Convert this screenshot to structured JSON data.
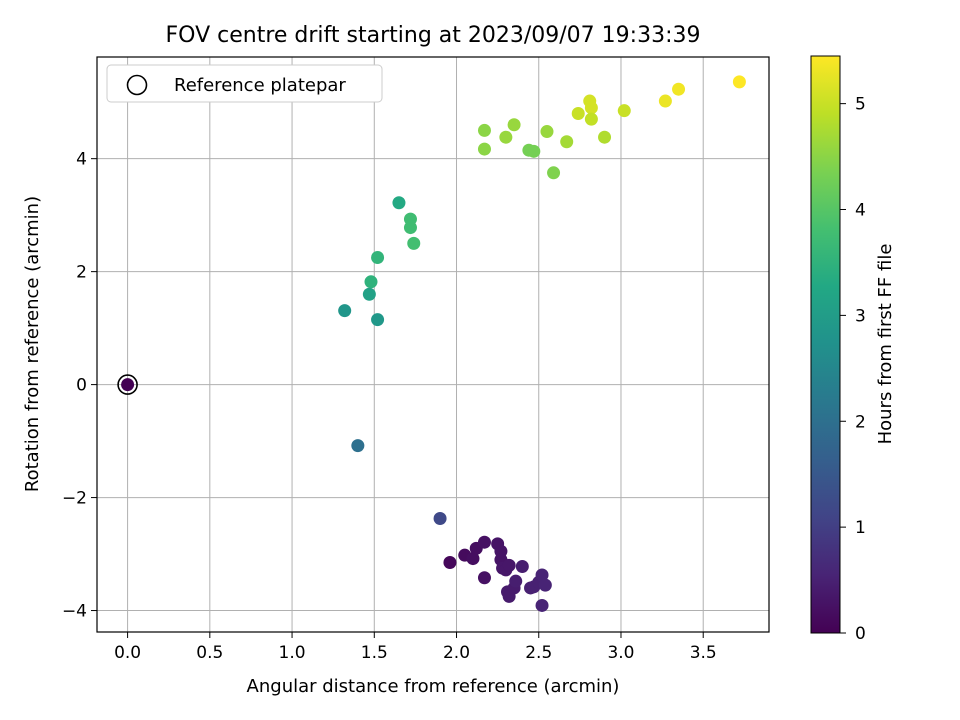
{
  "chart_data": {
    "type": "scatter",
    "title": "FOV centre drift starting at 2023/09/07 19:33:39",
    "xlabel": "Angular distance from reference (arcmin)",
    "ylabel": "Rotation from reference (arcmin)",
    "xlim": [
      -0.186,
      3.9
    ],
    "ylim": [
      -4.38,
      5.8
    ],
    "xticks": [
      0.0,
      0.5,
      1.0,
      1.5,
      2.0,
      2.5,
      3.0,
      3.5
    ],
    "xtick_labels": [
      "0.0",
      "0.5",
      "1.0",
      "1.5",
      "2.0",
      "2.5",
      "3.0",
      "3.5"
    ],
    "yticks": [
      -4,
      -2,
      0,
      2,
      4
    ],
    "ytick_labels": [
      "−4",
      "−2",
      "0",
      "2",
      "4"
    ],
    "grid": true,
    "legend": {
      "location": "top-left",
      "entries": [
        "Reference platepar"
      ]
    },
    "colorbar": {
      "label": "Hours from first FF file",
      "range": [
        0,
        5.45
      ],
      "ticks": [
        0,
        1,
        2,
        3,
        4,
        5
      ],
      "tick_labels": [
        "0",
        "1",
        "2",
        "3",
        "4",
        "5"
      ],
      "colormap": "viridis"
    },
    "reference_point": {
      "x": 0,
      "y": 0
    },
    "points": [
      {
        "x": 0.0,
        "y": 0.0,
        "c": 0.0
      },
      {
        "x": 1.96,
        "y": -3.15,
        "c": 0.1
      },
      {
        "x": 2.05,
        "y": -3.02,
        "c": 0.15
      },
      {
        "x": 2.1,
        "y": -3.08,
        "c": 0.2
      },
      {
        "x": 2.12,
        "y": -2.9,
        "c": 0.2
      },
      {
        "x": 2.17,
        "y": -2.79,
        "c": 0.25
      },
      {
        "x": 2.17,
        "y": -3.42,
        "c": 0.25
      },
      {
        "x": 2.25,
        "y": -2.82,
        "c": 0.3
      },
      {
        "x": 2.27,
        "y": -2.95,
        "c": 0.3
      },
      {
        "x": 2.27,
        "y": -3.1,
        "c": 0.3
      },
      {
        "x": 2.28,
        "y": -3.25,
        "c": 0.35
      },
      {
        "x": 2.3,
        "y": -3.28,
        "c": 0.35
      },
      {
        "x": 2.32,
        "y": -3.2,
        "c": 0.35
      },
      {
        "x": 2.31,
        "y": -3.67,
        "c": 0.4
      },
      {
        "x": 2.32,
        "y": -3.75,
        "c": 0.4
      },
      {
        "x": 2.35,
        "y": -3.6,
        "c": 0.4
      },
      {
        "x": 2.36,
        "y": -3.48,
        "c": 0.45
      },
      {
        "x": 2.4,
        "y": -3.22,
        "c": 0.45
      },
      {
        "x": 2.45,
        "y": -3.6,
        "c": 0.5
      },
      {
        "x": 2.47,
        "y": -3.58,
        "c": 0.5
      },
      {
        "x": 2.5,
        "y": -3.5,
        "c": 0.5
      },
      {
        "x": 2.52,
        "y": -3.37,
        "c": 0.55
      },
      {
        "x": 2.54,
        "y": -3.55,
        "c": 0.55
      },
      {
        "x": 2.52,
        "y": -3.91,
        "c": 0.55
      },
      {
        "x": 1.9,
        "y": -2.37,
        "c": 1.2
      },
      {
        "x": 1.4,
        "y": -1.08,
        "c": 2.0
      },
      {
        "x": 1.32,
        "y": 1.31,
        "c": 2.85
      },
      {
        "x": 1.52,
        "y": 1.15,
        "c": 2.9
      },
      {
        "x": 1.47,
        "y": 1.6,
        "c": 3.1
      },
      {
        "x": 1.48,
        "y": 1.82,
        "c": 3.5
      },
      {
        "x": 1.52,
        "y": 2.25,
        "c": 3.55
      },
      {
        "x": 1.65,
        "y": 3.22,
        "c": 3.3
      },
      {
        "x": 1.72,
        "y": 2.93,
        "c": 3.75
      },
      {
        "x": 1.72,
        "y": 2.78,
        "c": 3.75
      },
      {
        "x": 1.74,
        "y": 2.5,
        "c": 3.8
      },
      {
        "x": 2.17,
        "y": 4.5,
        "c": 4.5
      },
      {
        "x": 2.17,
        "y": 4.17,
        "c": 4.5
      },
      {
        "x": 2.3,
        "y": 4.38,
        "c": 4.6
      },
      {
        "x": 2.35,
        "y": 4.6,
        "c": 4.6
      },
      {
        "x": 2.44,
        "y": 4.15,
        "c": 4.3
      },
      {
        "x": 2.47,
        "y": 4.13,
        "c": 4.3
      },
      {
        "x": 2.55,
        "y": 4.48,
        "c": 4.6
      },
      {
        "x": 2.59,
        "y": 3.75,
        "c": 4.4
      },
      {
        "x": 2.67,
        "y": 4.3,
        "c": 4.7
      },
      {
        "x": 2.74,
        "y": 4.8,
        "c": 5.0
      },
      {
        "x": 2.81,
        "y": 5.02,
        "c": 5.1
      },
      {
        "x": 2.82,
        "y": 4.9,
        "c": 5.1
      },
      {
        "x": 2.82,
        "y": 4.7,
        "c": 4.95
      },
      {
        "x": 2.9,
        "y": 4.38,
        "c": 4.8
      },
      {
        "x": 3.02,
        "y": 4.85,
        "c": 5.0
      },
      {
        "x": 3.27,
        "y": 5.02,
        "c": 5.3
      },
      {
        "x": 3.35,
        "y": 5.23,
        "c": 5.35
      },
      {
        "x": 3.72,
        "y": 5.36,
        "c": 5.45
      }
    ]
  }
}
